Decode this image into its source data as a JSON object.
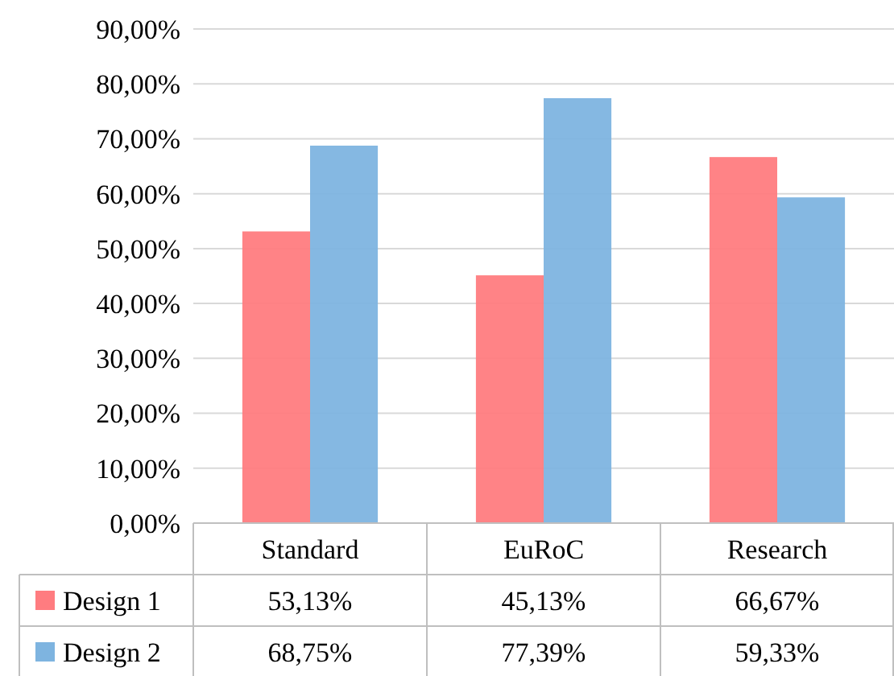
{
  "chart_data": {
    "type": "bar",
    "categories": [
      "Standard",
      "EuRoC",
      "Research"
    ],
    "series": [
      {
        "name": "Design 1",
        "color": "#ff7c80",
        "values": [
          53.13,
          45.13,
          66.67
        ],
        "value_labels": [
          "53,13%",
          "45,13%",
          "66,67%"
        ]
      },
      {
        "name": "Design 2",
        "color": "#7eb4e0",
        "values": [
          68.75,
          77.39,
          59.33
        ],
        "value_labels": [
          "68,75%",
          "77,39%",
          "59,33%"
        ]
      }
    ],
    "ylim": [
      0,
      90
    ],
    "yticks": [
      {
        "value": 0,
        "label": "0,00%"
      },
      {
        "value": 10,
        "label": "10,00%"
      },
      {
        "value": 20,
        "label": "20,00%"
      },
      {
        "value": 30,
        "label": "30,00%"
      },
      {
        "value": 40,
        "label": "40,00%"
      },
      {
        "value": 50,
        "label": "50,00%"
      },
      {
        "value": 60,
        "label": "60,00%"
      },
      {
        "value": 70,
        "label": "70,00%"
      },
      {
        "value": 80,
        "label": "80,00%"
      },
      {
        "value": 90,
        "label": "90,00%"
      }
    ],
    "grid": "y",
    "legend": "bottom",
    "data_labels": true
  }
}
